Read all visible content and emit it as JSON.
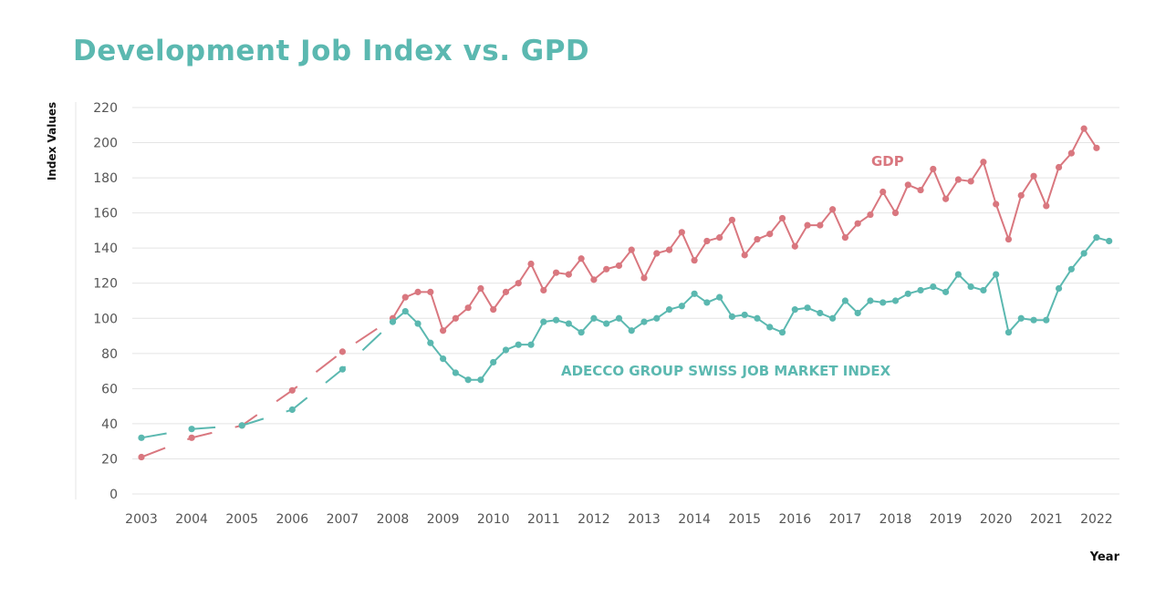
{
  "chart_data": {
    "type": "line",
    "title": "Development Job Index vs. GPD",
    "xlabel": "Year",
    "ylabel": "Index Values",
    "ylim": [
      0,
      220
    ],
    "yticks": [
      0,
      20,
      40,
      60,
      80,
      100,
      120,
      140,
      160,
      180,
      200,
      220
    ],
    "xticks": [
      2003,
      2004,
      2005,
      2006,
      2007,
      2008,
      2009,
      2010,
      2011,
      2012,
      2013,
      2014,
      2015,
      2016,
      2017,
      2018,
      2019,
      2020,
      2021,
      2022
    ],
    "grid": true,
    "colors": {
      "title": "#5bb8b0",
      "gdp": "#d9777f",
      "adecco": "#5bb8b0"
    },
    "series": [
      {
        "name": "GDP",
        "annual": {
          "x": [
            2003,
            2004,
            2005,
            2006,
            2007
          ],
          "y": [
            21,
            32,
            39,
            59,
            81
          ]
        },
        "quarterly_start": 2008,
        "quarterly": [
          100,
          112,
          115,
          115,
          93,
          100,
          106,
          117,
          105,
          115,
          120,
          131,
          116,
          126,
          125,
          134,
          122,
          128,
          130,
          139,
          123,
          137,
          139,
          149,
          133,
          144,
          146,
          156,
          136,
          145,
          148,
          157,
          141,
          153,
          153,
          162,
          146,
          154,
          159,
          172,
          160,
          176,
          173,
          185,
          168,
          179,
          178,
          189,
          165,
          145,
          170,
          181,
          164,
          186,
          194,
          208,
          197
        ]
      },
      {
        "name": "ADECCO GROUP SWISS JOB MARKET INDEX",
        "annual": {
          "x": [
            2003,
            2004,
            2005,
            2006,
            2007
          ],
          "y": [
            32,
            37,
            39,
            48,
            71
          ]
        },
        "quarterly_start": 2008,
        "quarterly": [
          98,
          104,
          97,
          86,
          77,
          69,
          65,
          65,
          75,
          82,
          85,
          85,
          98,
          99,
          97,
          92,
          100,
          97,
          100,
          93,
          98,
          100,
          105,
          107,
          114,
          109,
          112,
          101,
          102,
          100,
          95,
          92,
          105,
          106,
          103,
          100,
          110,
          103,
          110,
          109,
          110,
          114,
          116,
          118,
          115,
          125,
          118,
          116,
          125,
          92,
          100,
          99,
          99,
          117,
          128,
          137,
          146,
          144
        ]
      }
    ]
  }
}
